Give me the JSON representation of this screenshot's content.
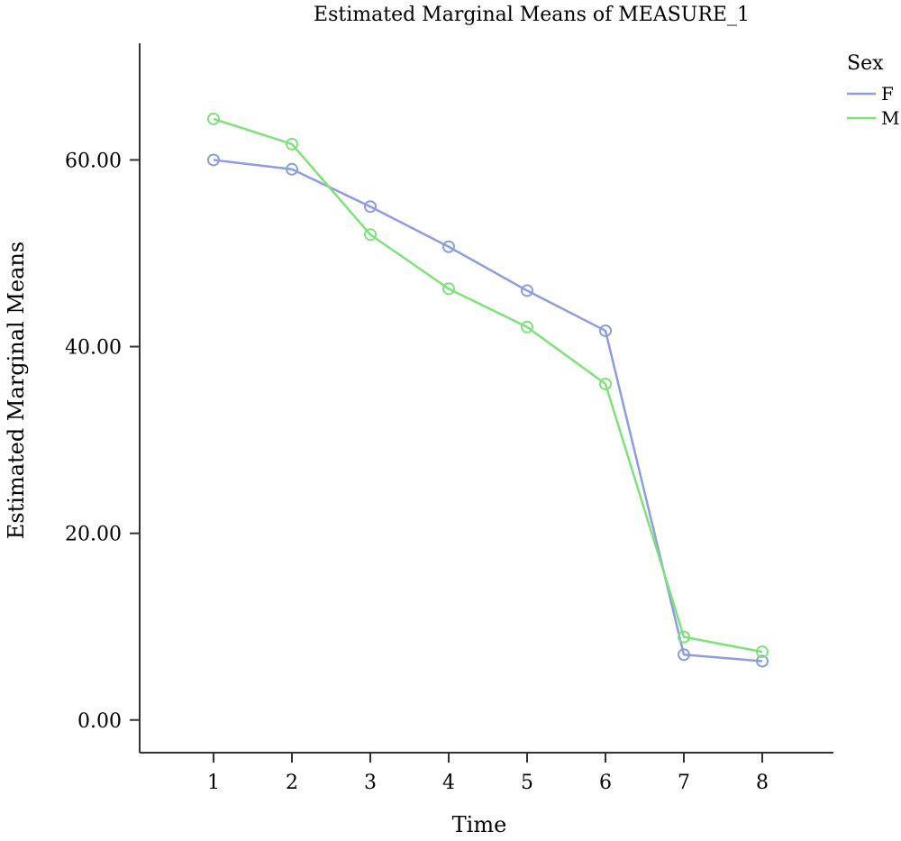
{
  "chart_data": {
    "type": "line",
    "title": "Estimated Marginal Means of MEASURE_1",
    "xlabel": "Time",
    "ylabel": "Estimated Marginal Means",
    "categories": [
      "1",
      "2",
      "3",
      "4",
      "5",
      "6",
      "7",
      "8"
    ],
    "x": [
      1,
      2,
      3,
      4,
      5,
      6,
      7,
      8
    ],
    "ylim": [
      -3.5,
      72.5
    ],
    "yticks": [
      0,
      20,
      40,
      60
    ],
    "ytick_labels": [
      "0.00",
      "20.00",
      "40.00",
      "60.00"
    ],
    "grid": false,
    "legend": {
      "title": "Sex",
      "position": "top-right"
    },
    "series": [
      {
        "name": "F",
        "color": "#8d9de0",
        "values": [
          60.0,
          59.0,
          55.0,
          50.7,
          46.0,
          41.7,
          7.0,
          6.3
        ]
      },
      {
        "name": "M",
        "color": "#7ee27a",
        "values": [
          64.4,
          61.7,
          52.0,
          46.2,
          42.1,
          36.0,
          8.9,
          7.3
        ]
      }
    ]
  }
}
